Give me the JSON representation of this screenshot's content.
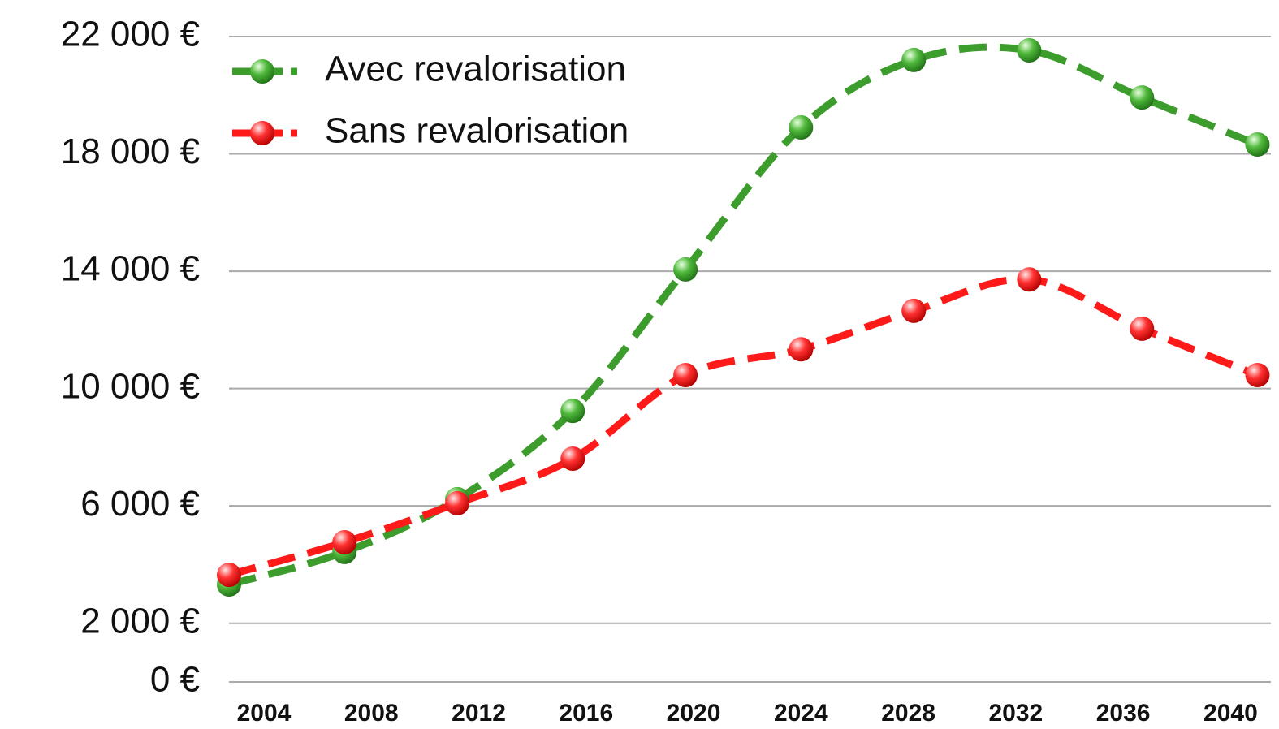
{
  "chart_data": {
    "type": "line",
    "x": [
      2002.7,
      2007,
      2011.2,
      2015.5,
      2019.7,
      2024,
      2028.2,
      2032.5,
      2036.7,
      2041
    ],
    "series": [
      {
        "name": "Avec revalorisation",
        "color": "#3c9c2c",
        "values": [
          3320,
          4430,
          6230,
          9240,
          14060,
          18900,
          21200,
          21530,
          19920,
          18320
        ]
      },
      {
        "name": "Sans revalorisation",
        "color": "#ff1a1a",
        "values": [
          3650,
          4760,
          6090,
          7610,
          10460,
          11340,
          12650,
          13720,
          12040,
          10460
        ]
      }
    ],
    "xlim": [
      2002.7,
      2041.5
    ],
    "xticks": [
      2004,
      2008,
      2012,
      2016,
      2020,
      2024,
      2028,
      2032,
      2036,
      2040
    ],
    "ylim": [
      0,
      22000
    ],
    "yticks": [
      {
        "value": 0,
        "label": "0 €"
      },
      {
        "value": 2000,
        "label": "2 000 €"
      },
      {
        "value": 6000,
        "label": "6 000 €"
      },
      {
        "value": 10000,
        "label": "10 000 €"
      },
      {
        "value": 14000,
        "label": "14 000 €"
      },
      {
        "value": 18000,
        "label": "18 000 €"
      },
      {
        "value": 22000,
        "label": "22 000 €"
      }
    ],
    "grid": true,
    "legend": "upper left"
  }
}
